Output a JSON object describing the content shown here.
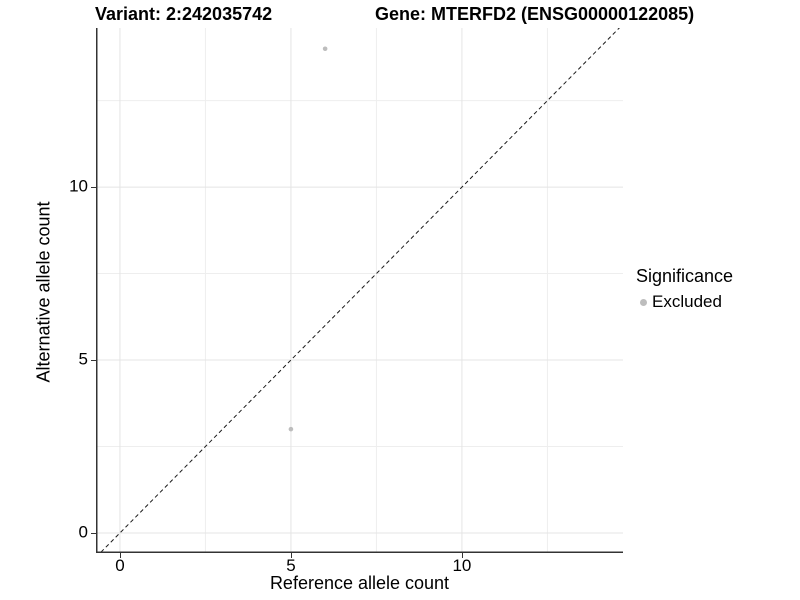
{
  "chart_data": {
    "type": "scatter",
    "title_left": "Variant: 2:242035742",
    "title_right": "Gene: MTERFD2 (ENSG00000122085)",
    "xlabel": "Reference allele count",
    "ylabel": "Alternative allele count",
    "xlim": [
      -0.7,
      14.71
    ],
    "ylim": [
      -0.58,
      14.6
    ],
    "xticks": [
      0,
      5,
      10
    ],
    "yticks": [
      0,
      5,
      10
    ],
    "minor_xticks": [
      2.5,
      7.5,
      12.5
    ],
    "minor_yticks": [
      2.5,
      7.5,
      12.5
    ],
    "grid": true,
    "panel_background": "#ffffff",
    "identity_line": {
      "slope": 1,
      "intercept": 0,
      "style": "dashed",
      "color": "#1a1a1a"
    },
    "series": [
      {
        "name": "Excluded",
        "color": "#bdbdbd",
        "point_radius": 2.3,
        "points": [
          {
            "x": 6,
            "y": 14
          },
          {
            "x": 5,
            "y": 3
          }
        ]
      }
    ],
    "legend": {
      "title": "Significance",
      "position": "right",
      "entries": [
        {
          "label": "Excluded",
          "color": "#bdbdbd"
        }
      ]
    }
  },
  "colors": {
    "background": "#ffffff",
    "grid_major": "#e4e4e4",
    "grid_minor": "#eeeeee",
    "axis_line": "#333333",
    "tick_mark": "#333333",
    "text": "#000000"
  }
}
